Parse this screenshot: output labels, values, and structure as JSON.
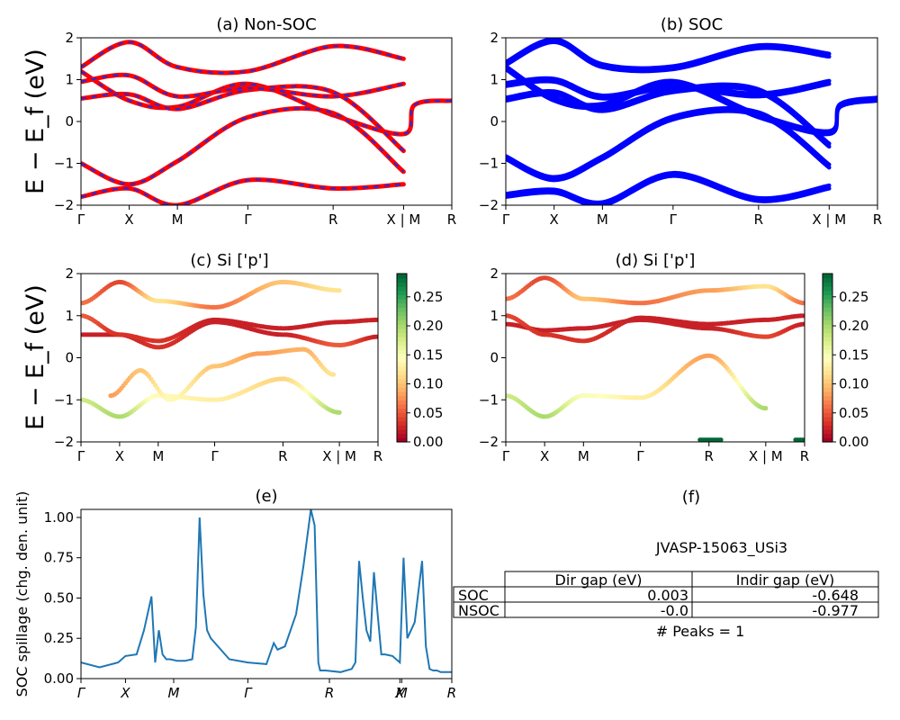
{
  "figure_id": "JVASP-15063_USi3",
  "colors": {
    "nonsoc_red": "#ff0000",
    "nonsoc_blue": "#2b2bd6",
    "soc_blue": "#0000ff",
    "spillage_line": "#1f77b4"
  },
  "chart_data": [
    {
      "id": "a",
      "type": "line",
      "title": "(a) Non-SOC",
      "ylabel": "E − E_f (eV)",
      "ylim": [
        -2,
        2
      ],
      "yticks": [
        "2",
        "1",
        "0",
        "−1",
        "−2"
      ],
      "xticks": [
        "Γ",
        "X",
        "M",
        "Γ",
        "R",
        "X | M",
        "R"
      ],
      "kpath": [
        0,
        0.13,
        0.26,
        0.45,
        0.68,
        0.87,
        1.0
      ],
      "series": [
        {
          "x": [
            0,
            0.13,
            0.26,
            0.45,
            0.68,
            0.87,
            0.9,
            1.0
          ],
          "y": [
            1.2,
            0.5,
            0.35,
            0.9,
            0.15,
            -0.3,
            0.4,
            0.5
          ]
        },
        {
          "x": [
            0,
            0.13,
            0.26,
            0.45,
            0.68,
            0.87
          ],
          "y": [
            0.55,
            0.65,
            0.3,
            0.75,
            0.7,
            -0.7
          ]
        },
        {
          "x": [
            0,
            0.13,
            0.26,
            0.45,
            0.68,
            0.87
          ],
          "y": [
            0.95,
            1.1,
            0.6,
            0.8,
            0.6,
            0.9
          ]
        },
        {
          "x": [
            0,
            0.13,
            0.26,
            0.45,
            0.68,
            0.87
          ],
          "y": [
            -1.0,
            -1.5,
            -0.95,
            0.1,
            0.2,
            -1.2
          ]
        },
        {
          "x": [
            0,
            0.13,
            0.26,
            0.45,
            0.68,
            0.87
          ],
          "y": [
            1.3,
            1.9,
            1.3,
            1.2,
            1.8,
            1.5
          ]
        },
        {
          "x": [
            0,
            0.13,
            0.26,
            0.45,
            0.68,
            0.87
          ],
          "y": [
            -1.8,
            -1.6,
            -2.0,
            -1.4,
            -1.6,
            -1.5
          ]
        }
      ]
    },
    {
      "id": "b",
      "type": "line",
      "title": "(b) SOC",
      "ylim": [
        -2,
        2
      ],
      "yticks": [
        "2",
        "1",
        "0",
        "−1",
        "−2"
      ],
      "xticks": [
        "Γ",
        "X",
        "M",
        "Γ",
        "R",
        "X | M",
        "R"
      ],
      "kpath": [
        0,
        0.13,
        0.26,
        0.45,
        0.68,
        0.87,
        1.0
      ],
      "series": [
        {
          "x": [
            0,
            0.13,
            0.26,
            0.45,
            0.68,
            0.87,
            0.9,
            1.0
          ],
          "y": [
            1.25,
            0.5,
            0.35,
            0.9,
            0.1,
            -0.3,
            0.35,
            0.5
          ]
        },
        {
          "x": [
            0,
            0.13,
            0.26,
            0.45,
            0.68,
            0.87
          ],
          "y": [
            0.85,
            0.95,
            0.55,
            0.8,
            0.6,
            0.9
          ]
        },
        {
          "x": [
            0,
            0.13,
            0.26,
            0.45,
            0.68,
            0.87
          ],
          "y": [
            0.5,
            0.65,
            0.25,
            0.7,
            0.7,
            -0.6
          ]
        },
        {
          "x": [
            0,
            0.13,
            0.26,
            0.45,
            0.68,
            0.87
          ],
          "y": [
            -0.9,
            -1.4,
            -0.9,
            0.05,
            0.15,
            -1.1
          ]
        },
        {
          "x": [
            0,
            0.13,
            0.26,
            0.45,
            0.68,
            0.87
          ],
          "y": [
            1.35,
            1.9,
            1.3,
            1.25,
            1.75,
            1.55
          ]
        },
        {
          "x": [
            0,
            0.13,
            0.26,
            0.45,
            0.68,
            0.87
          ],
          "y": [
            -1.8,
            -1.7,
            -2.0,
            -1.3,
            -1.9,
            -1.6
          ]
        }
      ]
    },
    {
      "id": "c",
      "type": "scatter",
      "title": "(c)  Si ['p']",
      "ylabel": "E − E_f (eV)",
      "ylim": [
        -2,
        2
      ],
      "yticks": [
        "2",
        "1",
        "0",
        "−1",
        "−2"
      ],
      "xticks": [
        "Γ",
        "X",
        "M",
        "Γ",
        "R",
        "X | M",
        "R"
      ],
      "kpath": [
        0,
        0.13,
        0.26,
        0.45,
        0.68,
        0.87,
        1.0
      ],
      "colorbar": {
        "min": 0.0,
        "max": 0.29,
        "ticks": [
          "0.25",
          "0.20",
          "0.15",
          "0.10",
          "0.05",
          "0.00"
        ]
      },
      "bands": [
        {
          "x": [
            0,
            0.13,
            0.26,
            0.45,
            0.68,
            0.87,
            1.0
          ],
          "y": [
            0.55,
            0.55,
            0.25,
            0.85,
            0.55,
            0.3,
            0.5
          ],
          "w": [
            0.02,
            0.02,
            0.03,
            0.02,
            0.02,
            0.05,
            0.02
          ]
        },
        {
          "x": [
            0,
            0.13,
            0.26,
            0.45,
            0.68,
            0.87,
            1.0
          ],
          "y": [
            1.0,
            0.55,
            0.4,
            0.9,
            0.7,
            0.85,
            0.9
          ],
          "w": [
            0.05,
            0.03,
            0.03,
            0.02,
            0.02,
            0.02,
            0.02
          ]
        },
        {
          "x": [
            0,
            0.13,
            0.26,
            0.45,
            0.68,
            0.87
          ],
          "y": [
            -1.0,
            -1.4,
            -0.9,
            -1.0,
            -0.5,
            -1.3
          ],
          "w": [
            0.18,
            0.2,
            0.14,
            0.13,
            0.11,
            0.2
          ]
        },
        {
          "x": [
            0,
            0.13,
            0.26,
            0.45,
            0.68,
            0.87
          ],
          "y": [
            1.3,
            1.8,
            1.35,
            1.2,
            1.8,
            1.6
          ],
          "w": [
            0.06,
            0.04,
            0.12,
            0.06,
            0.1,
            0.12
          ]
        },
        {
          "x": [
            0.1,
            0.2,
            0.3,
            0.45,
            0.6,
            0.75,
            0.85
          ],
          "y": [
            -0.9,
            -0.3,
            -1.0,
            -0.2,
            0.1,
            0.2,
            -0.4
          ],
          "w": [
            0.08,
            0.1,
            0.14,
            0.1,
            0.08,
            0.09,
            0.12
          ]
        }
      ]
    },
    {
      "id": "d",
      "type": "scatter",
      "title": "(d) Si ['p']",
      "ylim": [
        -2,
        2
      ],
      "yticks": [
        "2",
        "1",
        "0",
        "−1",
        "−2"
      ],
      "xticks": [
        "Γ",
        "X",
        "M",
        "Γ",
        "R",
        "X | M",
        "R"
      ],
      "kpath": [
        0,
        0.13,
        0.26,
        0.45,
        0.68,
        0.87,
        1.0
      ],
      "colorbar": {
        "min": 0.0,
        "max": 0.29,
        "ticks": [
          "0.25",
          "0.20",
          "0.15",
          "0.10",
          "0.05",
          "0.00"
        ]
      },
      "bands": [
        {
          "x": [
            0,
            0.13,
            0.26,
            0.45,
            0.68,
            0.87,
            1.0
          ],
          "y": [
            0.8,
            0.65,
            0.7,
            0.9,
            0.7,
            0.5,
            0.8
          ],
          "w": [
            0.02,
            0.02,
            0.02,
            0.02,
            0.02,
            0.04,
            0.02
          ]
        },
        {
          "x": [
            0,
            0.13,
            0.26,
            0.45,
            0.68,
            0.87,
            1.0
          ],
          "y": [
            1.0,
            0.55,
            0.4,
            0.95,
            0.8,
            0.9,
            1.0
          ],
          "w": [
            0.04,
            0.03,
            0.03,
            0.02,
            0.02,
            0.02,
            0.02
          ]
        },
        {
          "x": [
            0,
            0.13,
            0.26,
            0.45,
            0.68,
            0.87
          ],
          "y": [
            -0.9,
            -1.4,
            -0.9,
            -0.95,
            0.05,
            -1.2
          ],
          "w": [
            0.18,
            0.2,
            0.15,
            0.13,
            0.08,
            0.2
          ]
        },
        {
          "x": [
            0,
            0.13,
            0.26,
            0.45,
            0.68,
            0.87,
            1.0
          ],
          "y": [
            1.4,
            1.9,
            1.4,
            1.3,
            1.6,
            1.7,
            1.3
          ],
          "w": [
            0.06,
            0.04,
            0.1,
            0.06,
            0.08,
            0.12,
            0.06
          ]
        },
        {
          "x": [
            0.65,
            0.72
          ],
          "y": [
            -1.95,
            -1.95
          ],
          "w": [
            0.29,
            0.29
          ]
        },
        {
          "x": [
            0.97,
            1.0
          ],
          "y": [
            -1.95,
            -1.95
          ],
          "w": [
            0.29,
            0.29
          ]
        }
      ]
    },
    {
      "id": "e",
      "type": "line",
      "title": "(e)",
      "ylabel": "SOC spillage (chg. den. unit)",
      "ylim": [
        0,
        1.05
      ],
      "yticks": [
        "1.00",
        "0.75",
        "0.50",
        "0.25",
        "0.00"
      ],
      "xticks": [
        "Γ",
        "X",
        "M",
        "Γ",
        "R",
        "X",
        "M",
        "R"
      ],
      "kpath": [
        0,
        0.12,
        0.25,
        0.45,
        0.67,
        0.86,
        0.865,
        1.0
      ],
      "series": [
        {
          "name": "SOC spillage",
          "x": [
            0,
            0.05,
            0.1,
            0.12,
            0.15,
            0.17,
            0.19,
            0.2,
            0.21,
            0.22,
            0.23,
            0.24,
            0.26,
            0.28,
            0.3,
            0.31,
            0.32,
            0.33,
            0.34,
            0.35,
            0.4,
            0.45,
            0.5,
            0.52,
            0.53,
            0.55,
            0.58,
            0.6,
            0.62,
            0.63,
            0.64,
            0.645,
            0.66,
            0.7,
            0.73,
            0.74,
            0.75,
            0.76,
            0.77,
            0.78,
            0.79,
            0.8,
            0.81,
            0.82,
            0.84,
            0.86,
            0.87,
            0.88,
            0.89,
            0.9,
            0.92,
            0.93,
            0.94,
            0.95,
            0.96,
            0.97,
            1.0
          ],
          "y": [
            0.1,
            0.07,
            0.1,
            0.14,
            0.15,
            0.3,
            0.51,
            0.1,
            0.3,
            0.15,
            0.12,
            0.12,
            0.11,
            0.11,
            0.12,
            0.32,
            1.0,
            0.52,
            0.3,
            0.25,
            0.12,
            0.1,
            0.09,
            0.22,
            0.18,
            0.2,
            0.4,
            0.7,
            1.05,
            0.95,
            0.1,
            0.05,
            0.05,
            0.04,
            0.06,
            0.1,
            0.73,
            0.5,
            0.3,
            0.23,
            0.66,
            0.4,
            0.15,
            0.15,
            0.14,
            0.1,
            0.75,
            0.25,
            0.3,
            0.35,
            0.73,
            0.2,
            0.06,
            0.05,
            0.05,
            0.04,
            0.04
          ]
        }
      ]
    }
  ],
  "table": {
    "title": "(f)",
    "caption": "JVASP-15063_USi3",
    "headers": [
      "",
      "Dir gap (eV)",
      "Indir gap (eV)"
    ],
    "rows": [
      [
        "SOC",
        "0.003",
        "-0.648"
      ],
      [
        "NSOC",
        "-0.0",
        "-0.977"
      ]
    ],
    "footer": "# Peaks = 1"
  }
}
